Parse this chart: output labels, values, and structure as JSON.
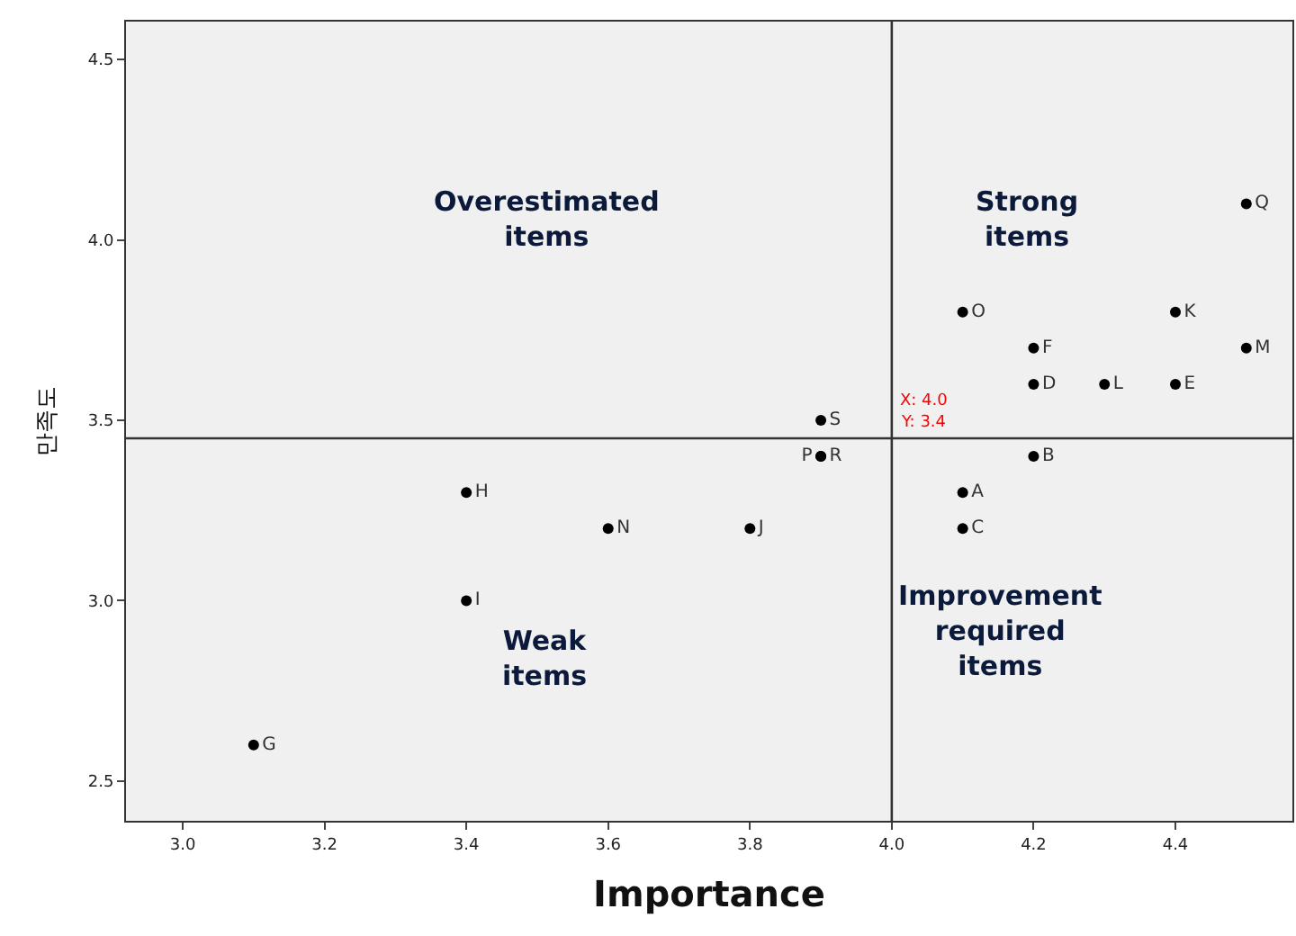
{
  "chart_data": {
    "type": "scatter",
    "xlabel": "Importance",
    "ylabel": "만족도",
    "x": [
      3.1,
      3.4,
      3.4,
      3.6,
      3.8,
      3.9,
      3.9,
      3.9,
      4.1,
      4.1,
      4.2,
      4.1,
      4.2,
      4.2,
      4.3,
      4.4,
      4.4,
      4.5,
      4.5
    ],
    "series": [
      {
        "color": "#000000",
        "values": [
          2.6,
          3.0,
          3.3,
          3.2,
          3.2,
          3.5,
          3.4,
          3.4,
          3.3,
          3.2,
          3.4,
          3.8,
          3.7,
          3.6,
          3.6,
          3.6,
          3.8,
          3.7,
          4.1
        ],
        "value_labels": [
          "G",
          "I",
          "H",
          "N",
          "J",
          "S",
          "P",
          "R",
          "A",
          "C",
          "B",
          "O",
          "F",
          "D",
          "L",
          "E",
          "K",
          "M",
          "Q"
        ]
      }
    ],
    "xlim": [
      2.92,
      4.565
    ],
    "xticks": [
      {
        "value": 3.0,
        "label": "3.0"
      },
      3.2,
      3.4,
      3.6,
      3.8,
      {
        "value": 4.0,
        "label": "4.0"
      },
      4.2,
      4.4
    ],
    "ylim": [
      2.39,
      4.605
    ],
    "yticks": [
      2.5,
      {
        "value": 3.0,
        "label": "3.0"
      },
      3.5,
      {
        "value": 4.0,
        "label": "4.0"
      },
      4.5
    ],
    "ref_lines": [
      {
        "axis": "x",
        "value": 4.0,
        "label": "X: 4.0",
        "color": "#333333"
      },
      {
        "axis": "y",
        "value": 3.45,
        "label": "Y: 3.4",
        "color": "#333333"
      }
    ],
    "annotations": [
      "Overestimated\nitems",
      "Strong\nitems",
      "Improvement\nrequired\nitems",
      "Weak\nitems"
    ],
    "marker": "circle",
    "grid": false
  }
}
